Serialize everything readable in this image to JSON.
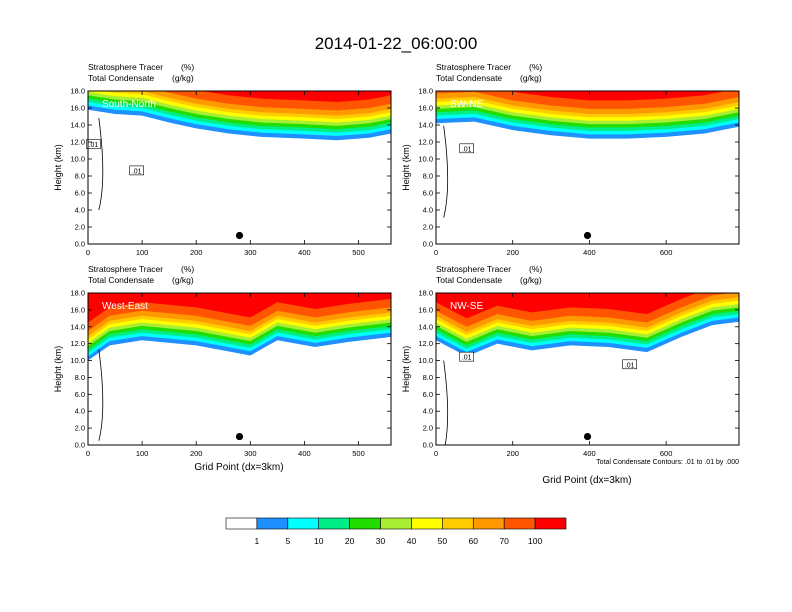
{
  "figure": {
    "title": "2014-01-22_06:00:00",
    "footnote": "Total Condensate Contours: .01 to .01 by .000",
    "x_axis_label": "Grid Point (dx=3km)"
  },
  "colorbar": {
    "colors": [
      "#ffffff",
      "#1e90ff",
      "#00ffff",
      "#00ee88",
      "#22dd00",
      "#aaee33",
      "#ffff00",
      "#ffcc00",
      "#ff9900",
      "#ff5500",
      "#ff0000"
    ],
    "labels": [
      "1",
      "5",
      "10",
      "20",
      "30",
      "40",
      "50",
      "60",
      "70",
      "100"
    ]
  },
  "chart_data": [
    {
      "type": "heatmap",
      "panel": "top-left",
      "subtitle_left": "Stratosphere Tracer",
      "subtitle_units": "(%)",
      "subtitle2_left": "Total Condensate",
      "subtitle2_units": "(g/kg)",
      "label": "South-North",
      "ylabel": "Height (km)",
      "xlim": [
        0,
        560
      ],
      "ylim": [
        0,
        18
      ],
      "xticks": [
        "0",
        "100",
        "200",
        "300",
        "400",
        "500"
      ],
      "xtick_values": [
        0,
        100,
        200,
        300,
        400,
        500
      ],
      "yticks": [
        "0.0",
        "2.0",
        "4.0",
        "6.0",
        "8.0",
        "10.0",
        "12.0",
        "14.0",
        "16.0",
        "18.0"
      ],
      "contour_labels": [
        ".01",
        ".01"
      ],
      "contour_label_pos": [
        [
          10,
          11.7
        ],
        [
          90,
          8.6
        ]
      ],
      "marker": [
        280,
        1.0
      ],
      "trop_base": [
        [
          0,
          15.8
        ],
        [
          50,
          15.3
        ],
        [
          100,
          15.1
        ],
        [
          150,
          14.3
        ],
        [
          200,
          13.6
        ],
        [
          260,
          13.0
        ],
        [
          320,
          12.6
        ],
        [
          400,
          12.4
        ],
        [
          460,
          12.2
        ],
        [
          520,
          12.5
        ],
        [
          560,
          13.0
        ]
      ]
    },
    {
      "type": "heatmap",
      "panel": "top-right",
      "subtitle_left": "Stratosphere Tracer",
      "subtitle_units": "(%)",
      "subtitle2_left": "Total Condensate",
      "subtitle2_units": "(g/kg)",
      "label": "SW-NE",
      "ylabel": "Height (km)",
      "xlim": [
        0,
        790
      ],
      "ylim": [
        0,
        18
      ],
      "xticks": [
        "0",
        "200",
        "400",
        "600"
      ],
      "xtick_values": [
        0,
        200,
        400,
        600
      ],
      "yticks": [
        "0.0",
        "2.0",
        "4.0",
        "6.0",
        "8.0",
        "10.0",
        "12.0",
        "14.0",
        "16.0",
        "18.0"
      ],
      "contour_labels": [
        ".01"
      ],
      "contour_label_pos": [
        [
          80,
          11.2
        ]
      ],
      "marker": [
        395,
        1.0
      ],
      "trop_base": [
        [
          0,
          14.2
        ],
        [
          100,
          14.4
        ],
        [
          200,
          13.4
        ],
        [
          300,
          12.8
        ],
        [
          400,
          12.4
        ],
        [
          500,
          12.4
        ],
        [
          600,
          12.6
        ],
        [
          700,
          13.0
        ],
        [
          790,
          13.8
        ]
      ]
    },
    {
      "type": "heatmap",
      "panel": "bottom-left",
      "subtitle_left": "Stratosphere Tracer",
      "subtitle_units": "(%)",
      "subtitle2_left": "Total Condensate",
      "subtitle2_units": "(g/kg)",
      "label": "West-East",
      "ylabel": "Height (km)",
      "xlim": [
        0,
        560
      ],
      "ylim": [
        0,
        18
      ],
      "xticks": [
        "0",
        "100",
        "200",
        "300",
        "400",
        "500"
      ],
      "xtick_values": [
        0,
        100,
        200,
        300,
        400,
        500
      ],
      "yticks": [
        "0.0",
        "2.0",
        "4.0",
        "6.0",
        "8.0",
        "10.0",
        "12.0",
        "14.0",
        "16.0",
        "18.0"
      ],
      "contour_labels": [],
      "contour_label_pos": [],
      "marker": [
        280,
        1.0
      ],
      "trop_base": [
        [
          0,
          10.0
        ],
        [
          40,
          11.8
        ],
        [
          100,
          12.4
        ],
        [
          200,
          11.8
        ],
        [
          300,
          10.6
        ],
        [
          350,
          12.4
        ],
        [
          420,
          11.6
        ],
        [
          480,
          12.2
        ],
        [
          560,
          12.8
        ]
      ]
    },
    {
      "type": "heatmap",
      "panel": "bottom-right",
      "subtitle_left": "Stratosphere Tracer",
      "subtitle_units": "(%)",
      "subtitle2_left": "Total Condensate",
      "subtitle2_units": "(g/kg)",
      "label": "NW-SE",
      "ylabel": "Height (km)",
      "xlim": [
        0,
        790
      ],
      "ylim": [
        0,
        18
      ],
      "xticks": [
        "0",
        "200",
        "400",
        "600"
      ],
      "xtick_values": [
        0,
        200,
        400,
        600
      ],
      "yticks": [
        "0.0",
        "2.0",
        "4.0",
        "6.0",
        "8.0",
        "10.0",
        "12.0",
        "14.0",
        "16.0",
        "18.0"
      ],
      "contour_labels": [
        ".01",
        ".01"
      ],
      "contour_label_pos": [
        [
          80,
          10.4
        ],
        [
          505,
          9.5
        ]
      ],
      "marker": [
        395,
        1.0
      ],
      "trop_base": [
        [
          0,
          12.4
        ],
        [
          80,
          10.5
        ],
        [
          160,
          12.0
        ],
        [
          250,
          11.2
        ],
        [
          350,
          11.8
        ],
        [
          450,
          11.6
        ],
        [
          550,
          11.0
        ],
        [
          640,
          12.8
        ],
        [
          720,
          14.2
        ],
        [
          790,
          14.6
        ]
      ]
    }
  ]
}
